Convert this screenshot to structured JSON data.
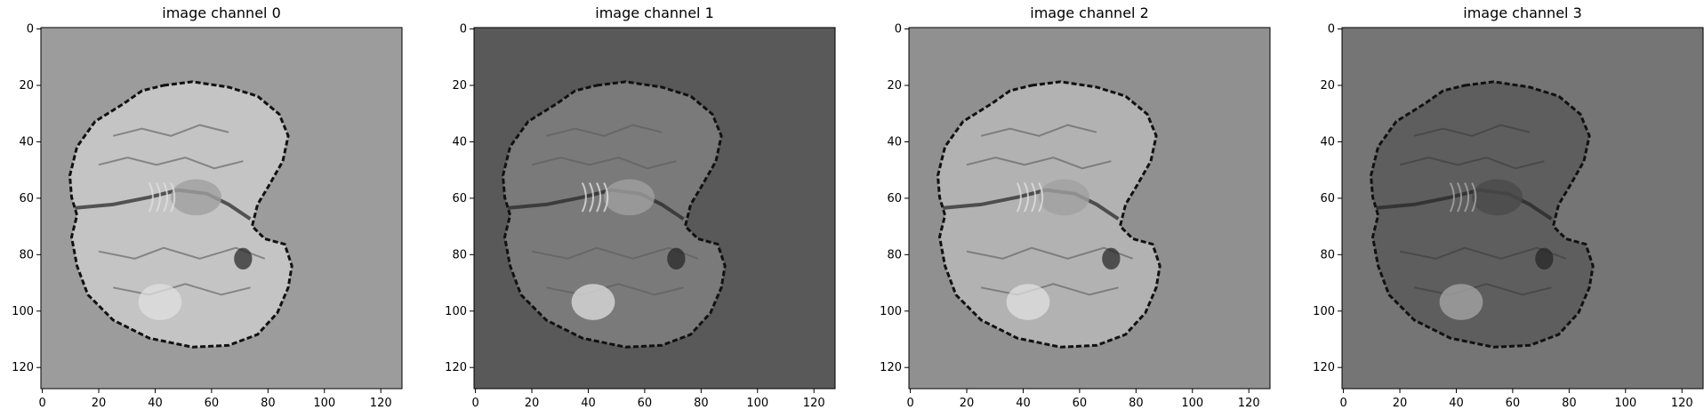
{
  "figure": {
    "panels": [
      {
        "title": "image channel 0",
        "background": "#9c9c9c",
        "tissue": "#c4c4c4",
        "x_ticks": [
          "0",
          "20",
          "40",
          "60",
          "80",
          "100",
          "120"
        ],
        "y_ticks": [
          "0",
          "20",
          "40",
          "60",
          "80",
          "100",
          "120"
        ]
      },
      {
        "title": "image channel 1",
        "background": "#595959",
        "tissue": "#7a7a7a",
        "x_ticks": [
          "0",
          "20",
          "40",
          "60",
          "80",
          "100",
          "120"
        ],
        "y_ticks": [
          "0",
          "20",
          "40",
          "60",
          "80",
          "100",
          "120"
        ]
      },
      {
        "title": "image channel 2",
        "background": "#909090",
        "tissue": "#b2b2b2",
        "x_ticks": [
          "0",
          "20",
          "40",
          "60",
          "80",
          "100",
          "120"
        ],
        "y_ticks": [
          "0",
          "20",
          "40",
          "60",
          "80",
          "100",
          "120"
        ]
      },
      {
        "title": "image channel 3",
        "background": "#757575",
        "tissue": "#5e5e5e",
        "x_ticks": [
          "0",
          "20",
          "40",
          "60",
          "80",
          "100",
          "120"
        ],
        "y_ticks": [
          "0",
          "20",
          "40",
          "60",
          "80",
          "100",
          "120"
        ]
      }
    ]
  }
}
